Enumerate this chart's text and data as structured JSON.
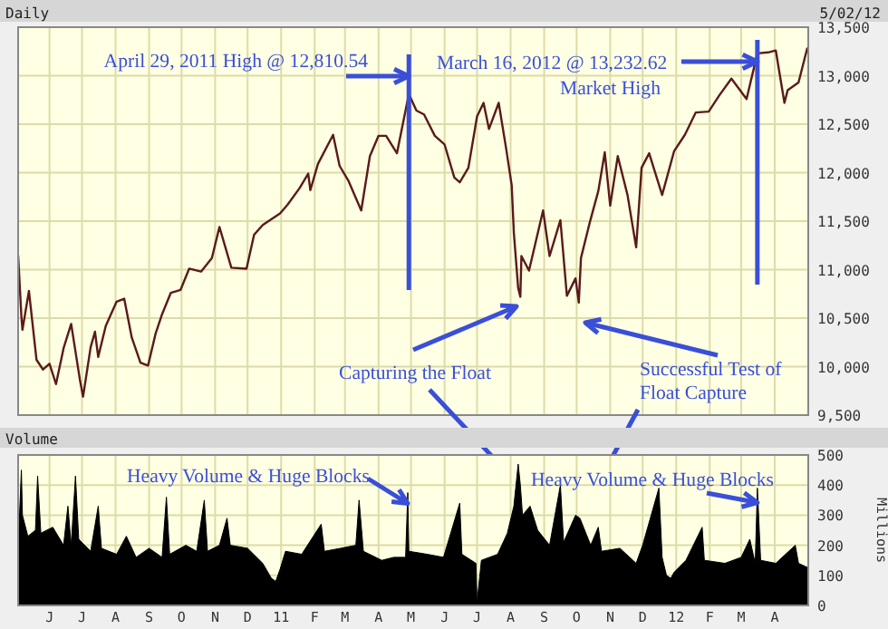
{
  "chart_data": [
    {
      "type": "line",
      "title": "Daily",
      "subtitle": "5/02/12",
      "x": [
        "2010-05-03",
        "2010-05-06",
        "2010-05-07",
        "2010-05-13",
        "2010-05-20",
        "2010-05-26",
        "2010-06-01",
        "2010-06-07",
        "2010-06-14",
        "2010-06-21",
        "2010-06-29",
        "2010-07-02",
        "2010-07-09",
        "2010-07-13",
        "2010-07-16",
        "2010-07-23",
        "2010-08-02",
        "2010-08-09",
        "2010-08-16",
        "2010-08-24",
        "2010-08-31",
        "2010-09-07",
        "2010-09-13",
        "2010-09-21",
        "2010-09-30",
        "2010-10-08",
        "2010-10-19",
        "2010-10-29",
        "2010-11-05",
        "2010-11-16",
        "2010-11-30",
        "2010-12-07",
        "2010-12-15",
        "2010-12-31",
        "2011-01-07",
        "2011-01-18",
        "2011-01-26",
        "2011-01-28",
        "2011-02-04",
        "2011-02-18",
        "2011-02-24",
        "2011-03-04",
        "2011-03-16",
        "2011-03-24",
        "2011-04-01",
        "2011-04-08",
        "2011-04-18",
        "2011-04-29",
        "2011-05-06",
        "2011-05-13",
        "2011-05-23",
        "2011-06-01",
        "2011-06-10",
        "2011-06-15",
        "2011-06-23",
        "2011-07-01",
        "2011-07-07",
        "2011-07-12",
        "2011-07-21",
        "2011-07-28",
        "2011-08-02",
        "2011-08-04",
        "2011-08-08",
        "2011-08-10",
        "2011-08-11",
        "2011-08-18",
        "2011-08-31",
        "2011-09-06",
        "2011-09-16",
        "2011-09-22",
        "2011-09-30",
        "2011-10-03",
        "2011-10-05",
        "2011-10-13",
        "2011-10-21",
        "2011-10-27",
        "2011-11-01",
        "2011-11-08",
        "2011-11-17",
        "2011-11-25",
        "2011-11-30",
        "2011-12-07",
        "2011-12-19",
        "2011-12-30",
        "2012-01-09",
        "2012-01-19",
        "2012-01-31",
        "2012-02-10",
        "2012-02-21",
        "2012-03-06",
        "2012-03-16",
        "2012-03-26",
        "2012-04-02",
        "2012-04-10",
        "2012-04-13",
        "2012-04-23",
        "2012-05-01",
        "2012-05-02"
      ],
      "series": [
        {
          "color": "#5a1a1a",
          "values": [
            11150,
            10520,
            10380,
            10780,
            10070,
            9970,
            10030,
            9820,
            10190,
            10440,
            9870,
            9690,
            10200,
            10360,
            10100,
            10420,
            10670,
            10700,
            10300,
            10040,
            10010,
            10340,
            10540,
            10760,
            10790,
            11010,
            10980,
            11120,
            11440,
            11020,
            11010,
            11360,
            11460,
            11580,
            11670,
            11840,
            11990,
            11820,
            12090,
            12390,
            12070,
            11920,
            11610,
            12170,
            12380,
            12380,
            12200,
            12810,
            12640,
            12600,
            12380,
            12290,
            11950,
            11900,
            12050,
            12580,
            12720,
            12450,
            12720,
            12240,
            11870,
            11380,
            10810,
            10720,
            11140,
            10990,
            11610,
            11140,
            11510,
            10730,
            10910,
            10660,
            11120,
            11480,
            11810,
            12210,
            11660,
            12170,
            11770,
            11230,
            12050,
            12200,
            11770,
            12220,
            12390,
            12620,
            12630,
            12800,
            12970,
            12760,
            13230,
            13240,
            13260,
            12720,
            12850,
            12930,
            13280,
            13270
          ]
        }
      ],
      "xlim": [
        "2010-05-03",
        "2012-05-02"
      ],
      "xticks": [
        {
          "value": "2010-06-01",
          "label": null
        },
        {
          "value": "2010-07-01",
          "label": null
        },
        {
          "value": "2010-08-01",
          "label": null
        },
        {
          "value": "2010-09-01",
          "label": null
        },
        {
          "value": "2010-10-01",
          "label": null
        },
        {
          "value": "2010-11-01",
          "label": null
        },
        {
          "value": "2010-12-01",
          "label": null
        },
        {
          "value": "2011-01-01",
          "label": null
        },
        {
          "value": "2011-02-01",
          "label": null
        },
        {
          "value": "2011-03-01",
          "label": null
        },
        {
          "value": "2011-04-01",
          "label": null
        },
        {
          "value": "2011-05-01",
          "label": null
        },
        {
          "value": "2011-06-01",
          "label": null
        },
        {
          "value": "2011-07-01",
          "label": null
        },
        {
          "value": "2011-08-01",
          "label": null
        },
        {
          "value": "2011-09-01",
          "label": null
        },
        {
          "value": "2011-10-01",
          "label": null
        },
        {
          "value": "2011-11-01",
          "label": null
        },
        {
          "value": "2011-12-01",
          "label": null
        },
        {
          "value": "2012-01-01",
          "label": null
        },
        {
          "value": "2012-02-01",
          "label": null
        },
        {
          "value": "2012-03-01",
          "label": null
        },
        {
          "value": "2012-04-01",
          "label": null
        }
      ],
      "ylim": [
        9500,
        13500
      ],
      "yticks": [
        {
          "value": 9500,
          "label": "9,500"
        },
        {
          "value": 10000,
          "label": "10,000"
        },
        {
          "value": 10500,
          "label": "10,500"
        },
        {
          "value": 11000,
          "label": "11,000"
        },
        {
          "value": 11500,
          "label": "11,500"
        },
        {
          "value": 12000,
          "label": "12,000"
        },
        {
          "value": 12500,
          "label": "12,500"
        },
        {
          "value": 13000,
          "label": "13,000"
        },
        {
          "value": 13500,
          "label": "13,500"
        }
      ],
      "tick_labels": "y",
      "grid": true,
      "annotations": [
        {
          "text": "April 29, 2011 High @ 12,810.54",
          "x": "2011-04-29",
          "y": 12810.54
        },
        {
          "text": "March 16, 2012 @ 13,232.62",
          "x": "2012-03-16",
          "y": 13232.62
        },
        "Market High",
        "Capturing the Float",
        "Successful Test of Float Capture"
      ]
    },
    {
      "type": "area",
      "title": "Volume",
      "ylabel": "Millions",
      "x": [
        "2010-05-03",
        "2010-05-06",
        "2010-05-07",
        "2010-05-12",
        "2010-05-19",
        "2010-05-21",
        "2010-05-24",
        "2010-06-04",
        "2010-06-14",
        "2010-06-18",
        "2010-06-21",
        "2010-06-25",
        "2010-06-28",
        "2010-07-09",
        "2010-07-16",
        "2010-07-19",
        "2010-08-02",
        "2010-08-11",
        "2010-08-20",
        "2010-09-01",
        "2010-09-13",
        "2010-09-17",
        "2010-09-20",
        "2010-10-05",
        "2010-10-15",
        "2010-10-22",
        "2010-10-25",
        "2010-11-05",
        "2010-11-12",
        "2010-11-15",
        "2010-12-01",
        "2010-12-15",
        "2010-12-23",
        "2010-12-27",
        "2010-12-31",
        "2011-01-05",
        "2011-01-20",
        "2011-02-07",
        "2011-02-10",
        "2011-02-25",
        "2011-03-11",
        "2011-03-14",
        "2011-03-18",
        "2011-04-04",
        "2011-04-15",
        "2011-04-26",
        "2011-04-28",
        "2011-04-29",
        "2011-05-16",
        "2011-05-31",
        "2011-06-15",
        "2011-06-17",
        "2011-06-30",
        "2011-07-01",
        "2011-07-05",
        "2011-07-20",
        "2011-07-29",
        "2011-08-04",
        "2011-08-08",
        "2011-08-10",
        "2011-08-12",
        "2011-08-19",
        "2011-08-26",
        "2011-09-06",
        "2011-09-16",
        "2011-09-19",
        "2011-09-30",
        "2011-10-04",
        "2011-10-14",
        "2011-10-21",
        "2011-10-24",
        "2011-11-10",
        "2011-11-25",
        "2011-12-01",
        "2011-12-16",
        "2011-12-19",
        "2011-12-23",
        "2011-12-27",
        "2011-12-30",
        "2012-01-10",
        "2012-01-25",
        "2012-01-27",
        "2012-02-15",
        "2012-03-01",
        "2012-03-09",
        "2012-03-14",
        "2012-03-16",
        "2012-03-19",
        "2012-04-02",
        "2012-04-20",
        "2012-04-23",
        "2012-05-02"
      ],
      "series": [
        {
          "color": "#000000",
          "values": [
            190,
            450,
            300,
            230,
            250,
            430,
            240,
            260,
            200,
            330,
            200,
            430,
            220,
            180,
            330,
            190,
            170,
            230,
            160,
            190,
            160,
            360,
            170,
            200,
            180,
            350,
            180,
            200,
            290,
            200,
            190,
            140,
            90,
            80,
            120,
            180,
            170,
            270,
            180,
            190,
            200,
            350,
            180,
            150,
            160,
            160,
            375,
            180,
            170,
            160,
            340,
            170,
            140,
            10,
            150,
            170,
            240,
            330,
            470,
            400,
            300,
            330,
            250,
            200,
            400,
            210,
            300,
            290,
            200,
            260,
            180,
            190,
            140,
            200,
            390,
            160,
            100,
            90,
            110,
            150,
            260,
            150,
            140,
            160,
            220,
            140,
            390,
            150,
            140,
            200,
            140,
            125
          ]
        }
      ],
      "xlim": [
        "2010-05-03",
        "2012-05-02"
      ],
      "xticks": [
        {
          "value": "2010-06-01",
          "label": "J"
        },
        {
          "value": "2010-07-01",
          "label": "J"
        },
        {
          "value": "2010-08-01",
          "label": "A"
        },
        {
          "value": "2010-09-01",
          "label": "S"
        },
        {
          "value": "2010-10-01",
          "label": "O"
        },
        {
          "value": "2010-11-01",
          "label": "N"
        },
        {
          "value": "2010-12-01",
          "label": "D"
        },
        {
          "value": "2011-01-01",
          "label": "11"
        },
        {
          "value": "2011-02-01",
          "label": "F"
        },
        {
          "value": "2011-03-01",
          "label": "M"
        },
        {
          "value": "2011-04-01",
          "label": "A"
        },
        {
          "value": "2011-05-01",
          "label": "M"
        },
        {
          "value": "2011-06-01",
          "label": "J"
        },
        {
          "value": "2011-07-01",
          "label": "J"
        },
        {
          "value": "2011-08-01",
          "label": "A"
        },
        {
          "value": "2011-09-01",
          "label": "S"
        },
        {
          "value": "2011-10-01",
          "label": "O"
        },
        {
          "value": "2011-11-01",
          "label": "N"
        },
        {
          "value": "2011-12-01",
          "label": "D"
        },
        {
          "value": "2012-01-01",
          "label": "12"
        },
        {
          "value": "2012-02-01",
          "label": "F"
        },
        {
          "value": "2012-03-01",
          "label": "M"
        },
        {
          "value": "2012-04-01",
          "label": "A"
        }
      ],
      "ylim": [
        0,
        500
      ],
      "yticks": [
        0,
        100,
        200,
        300,
        400,
        500
      ],
      "grid": true,
      "annotations": [
        {
          "text": "Heavy Volume & Huge Blocks",
          "x": "2011-04-28",
          "y": 375
        },
        {
          "text": "Heavy Volume & Huge Blocks",
          "x": "2012-03-16",
          "y": 390
        }
      ]
    }
  ]
}
